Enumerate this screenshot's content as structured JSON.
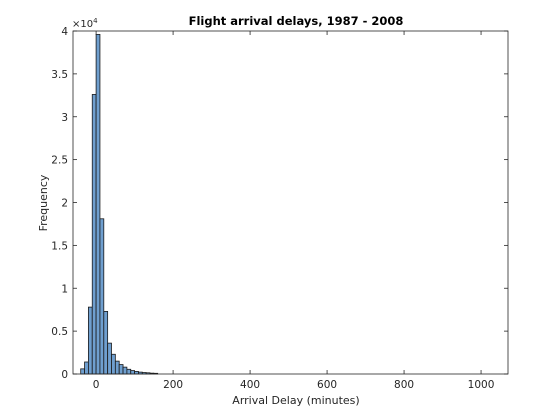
{
  "chart_data": {
    "type": "bar",
    "title": "Flight arrival delays, 1987 - 2008",
    "xlabel": "Arrival Delay (minutes)",
    "ylabel": "Frequency",
    "xlim": [
      -60,
      1070
    ],
    "ylim": [
      0,
      40000
    ],
    "x_ticks": [
      0,
      200,
      400,
      600,
      800,
      1000
    ],
    "y_ticks": [
      0,
      0.5,
      1,
      1.5,
      2,
      2.5,
      3,
      3.5,
      4
    ],
    "y_tick_labels": [
      "0",
      "0.5",
      "1",
      "1.5",
      "2",
      "2.5",
      "3",
      "3.5",
      "4"
    ],
    "y_exponent": "×10",
    "y_exponent_power": "4",
    "bin_width": 10,
    "bin_edges_start": -40,
    "values": [
      600,
      1400,
      7800,
      32600,
      39600,
      18100,
      7300,
      3600,
      2300,
      1500,
      1100,
      800,
      550,
      400,
      300,
      220,
      170,
      140,
      100,
      80
    ],
    "bar_color": "#6f9fcf",
    "edge_color": "#1a1a1a",
    "grid": false
  }
}
